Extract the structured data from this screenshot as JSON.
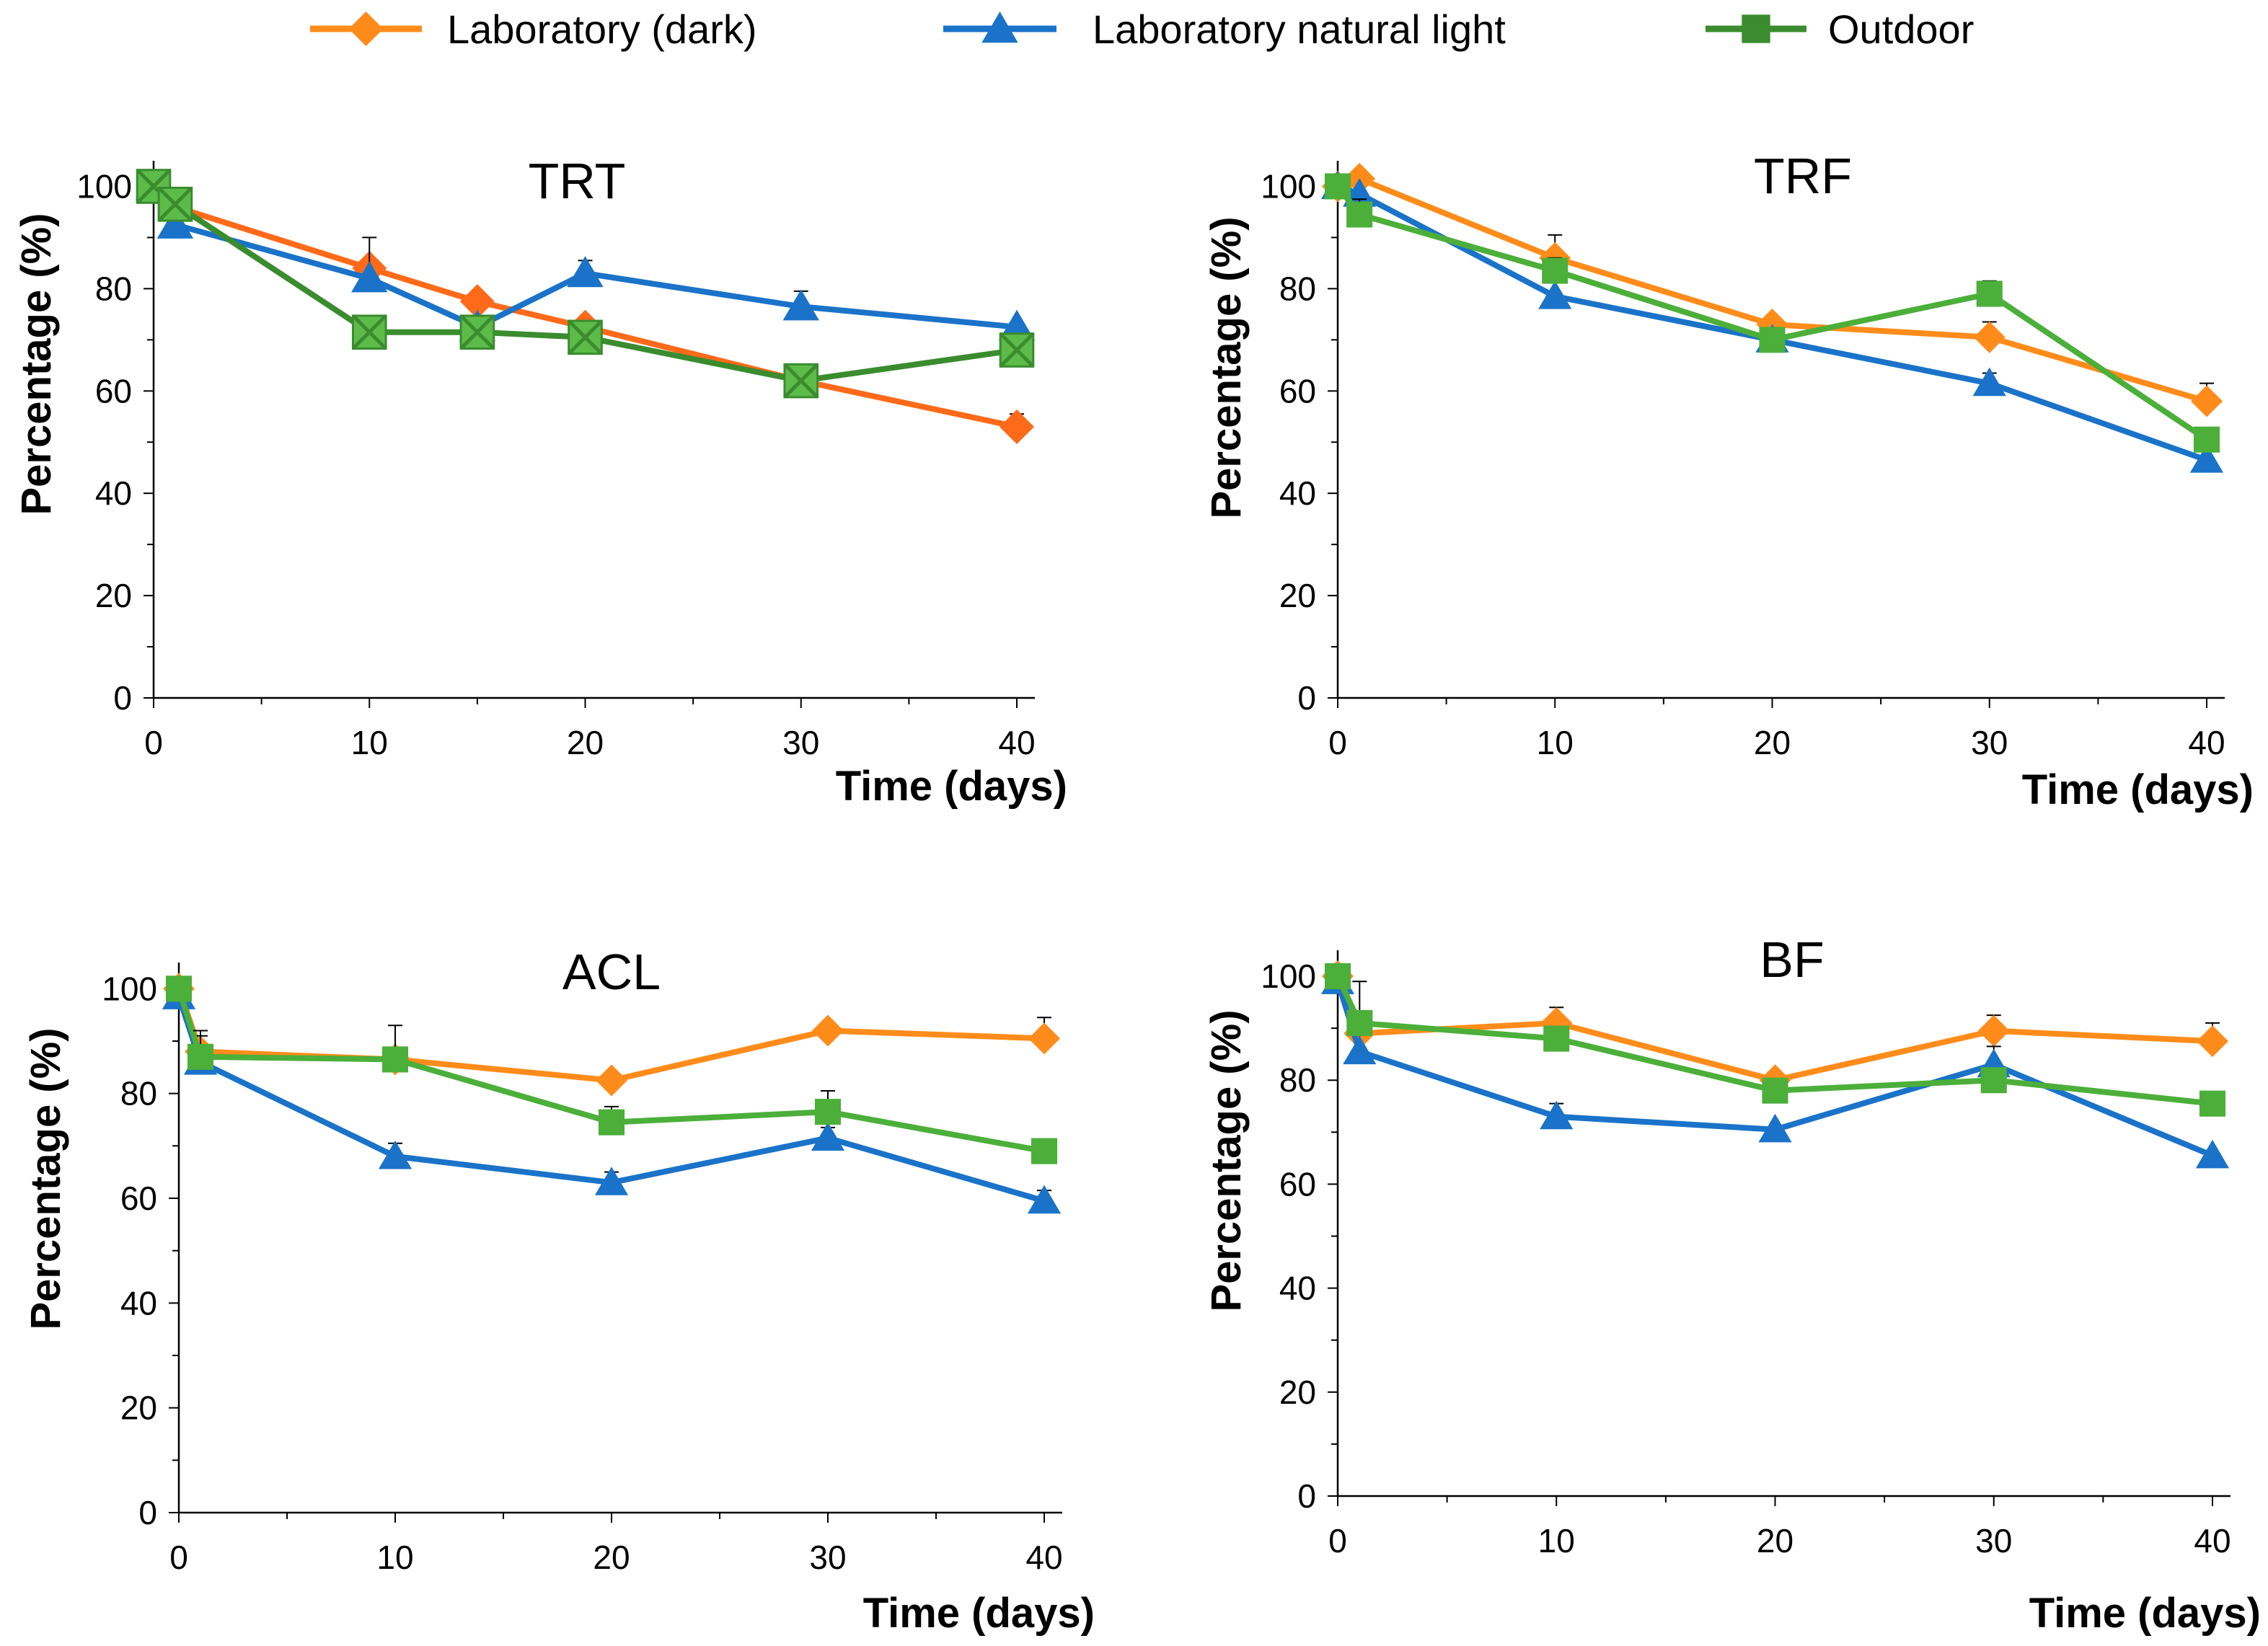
{
  "legend": {
    "items": [
      {
        "label": "Laboratory (dark)",
        "color": "#FF8C1A",
        "marker": "diamond"
      },
      {
        "label": "Laboratory natural light",
        "color": "#1A73C8",
        "marker": "triangle"
      },
      {
        "label": "Outdoor",
        "color": "#3A8C2E",
        "marker": "square"
      }
    ]
  },
  "chart_data": [
    {
      "type": "line",
      "title": "TRT",
      "xlabel": "Time (days)",
      "ylabel": "Percentage (%)",
      "xlim": [
        0,
        40
      ],
      "ylim": [
        0,
        105
      ],
      "xticks": [
        0,
        10,
        20,
        30,
        40
      ],
      "yticks": [
        0,
        20,
        40,
        60,
        80,
        100
      ],
      "series": [
        {
          "name": "Laboratory (dark)",
          "color": "#FF6A1A",
          "marker": "diamond",
          "x": [
            0,
            1,
            10,
            15,
            20,
            30,
            40
          ],
          "y": [
            100,
            96,
            84,
            77.5,
            72.5,
            62,
            53
          ],
          "err": [
            0,
            0,
            0,
            0,
            0,
            0,
            2.5
          ]
        },
        {
          "name": "Laboratory natural light",
          "color": "#1A73C8",
          "marker": "triangle",
          "x": [
            0,
            1,
            10,
            15,
            20,
            30,
            40
          ],
          "y": [
            100,
            92.5,
            82,
            72.5,
            83,
            76.5,
            72.5
          ],
          "err": [
            0,
            3.5,
            8,
            0,
            2.5,
            3,
            0
          ]
        },
        {
          "name": "Outdoor",
          "color": "#3A8C2E",
          "marker": "xsquare",
          "x": [
            0,
            1,
            10,
            15,
            20,
            30,
            40
          ],
          "y": [
            100,
            96.5,
            71.5,
            71.5,
            70.5,
            62,
            68
          ],
          "err": [
            0,
            0,
            0,
            3,
            0,
            3,
            0
          ]
        }
      ]
    },
    {
      "type": "line",
      "title": "TRF",
      "xlabel": "Time (days)",
      "ylabel": "Percentage (%)",
      "xlim": [
        0,
        40
      ],
      "ylim": [
        0,
        105
      ],
      "xticks": [
        0,
        10,
        20,
        30,
        40
      ],
      "yticks": [
        0,
        20,
        40,
        60,
        80,
        100
      ],
      "series": [
        {
          "name": "Laboratory (dark)",
          "color": "#FF8C1A",
          "marker": "diamond",
          "x": [
            0,
            1,
            10,
            20,
            30,
            40
          ],
          "y": [
            100,
            101.5,
            86,
            73,
            70.5,
            58
          ],
          "err": [
            0,
            0,
            4.5,
            0,
            3,
            3.5
          ]
        },
        {
          "name": "Laboratory natural light",
          "color": "#1A73C8",
          "marker": "triangle",
          "x": [
            0,
            1,
            10,
            20,
            30,
            40
          ],
          "y": [
            100,
            98.5,
            78.5,
            70,
            61.5,
            46.5
          ],
          "err": [
            0,
            0,
            0,
            0,
            2,
            5
          ]
        },
        {
          "name": "Outdoor",
          "color": "#4CAF3A",
          "marker": "square",
          "x": [
            0,
            1,
            10,
            20,
            30,
            40
          ],
          "y": [
            100,
            94.5,
            83.5,
            70,
            79,
            50.5
          ],
          "err": [
            0,
            3,
            2.5,
            0,
            2.5,
            0
          ]
        }
      ]
    },
    {
      "type": "line",
      "title": "ACL",
      "xlabel": "Time (days)",
      "ylabel": "Percentage (%)",
      "xlim": [
        0,
        40
      ],
      "ylim": [
        0,
        105
      ],
      "xticks": [
        0,
        10,
        20,
        30,
        40
      ],
      "yticks": [
        0,
        20,
        40,
        60,
        80,
        100
      ],
      "series": [
        {
          "name": "Laboratory (dark)",
          "color": "#FF8C1A",
          "marker": "diamond",
          "x": [
            0,
            1,
            10,
            20,
            30,
            40
          ],
          "y": [
            100,
            88,
            86.5,
            82.5,
            92,
            90.5
          ],
          "err": [
            0,
            0,
            0,
            0,
            0,
            4
          ]
        },
        {
          "name": "Laboratory natural light",
          "color": "#1A73C8",
          "marker": "triangle",
          "x": [
            0,
            1,
            10,
            20,
            30,
            40
          ],
          "y": [
            98.5,
            86,
            68,
            63,
            71.5,
            59.5
          ],
          "err": [
            0,
            5,
            2.5,
            2,
            2,
            2
          ]
        },
        {
          "name": "Outdoor",
          "color": "#4CAF3A",
          "marker": "square",
          "x": [
            0,
            1,
            10,
            20,
            30,
            40
          ],
          "y": [
            100,
            87,
            86.5,
            74.5,
            76.5,
            69
          ],
          "err": [
            0,
            5,
            6.5,
            3,
            4,
            0
          ]
        }
      ]
    },
    {
      "type": "line",
      "title": "BF",
      "xlabel": "Time (days)",
      "ylabel": "Percentage (%)",
      "xlim": [
        0,
        40
      ],
      "ylim": [
        0,
        105
      ],
      "xticks": [
        0,
        10,
        20,
        30,
        40
      ],
      "yticks": [
        0,
        20,
        40,
        60,
        80,
        100
      ],
      "series": [
        {
          "name": "Laboratory (dark)",
          "color": "#FF8C1A",
          "marker": "diamond",
          "x": [
            0,
            1,
            10,
            20,
            30,
            40
          ],
          "y": [
            100,
            89,
            91,
            80,
            89.5,
            87.5
          ],
          "err": [
            0,
            10,
            3,
            0,
            3,
            3.5
          ]
        },
        {
          "name": "Laboratory natural light",
          "color": "#1A73C8",
          "marker": "triangle",
          "x": [
            0,
            1,
            10,
            20,
            30,
            40
          ],
          "y": [
            99,
            85.5,
            73,
            70.5,
            83,
            65.5
          ],
          "err": [
            0,
            5.5,
            2.5,
            0,
            3.5,
            0
          ]
        },
        {
          "name": "Outdoor",
          "color": "#4CAF3A",
          "marker": "square",
          "x": [
            0,
            1,
            10,
            20,
            30,
            40
          ],
          "y": [
            100,
            91,
            88,
            78,
            80,
            75.5
          ],
          "err": [
            0,
            0,
            0,
            0,
            2,
            0
          ]
        }
      ]
    }
  ]
}
